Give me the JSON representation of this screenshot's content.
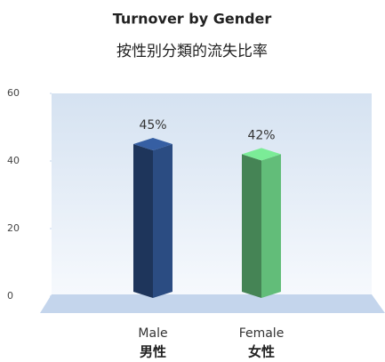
{
  "chart_data": {
    "type": "bar3d",
    "title": "Turnover by Gender",
    "subtitle": "按性别分類的流失比率",
    "categories": [
      "Male",
      "Female"
    ],
    "category_subtitles": [
      "男性",
      "女性"
    ],
    "values": [
      45,
      42
    ],
    "value_labels": [
      "45%",
      "42%"
    ],
    "colors": [
      "#2b4c82",
      "#62bd79"
    ],
    "ylim": [
      0,
      60
    ],
    "yticks": [
      0,
      20,
      40,
      60
    ]
  }
}
